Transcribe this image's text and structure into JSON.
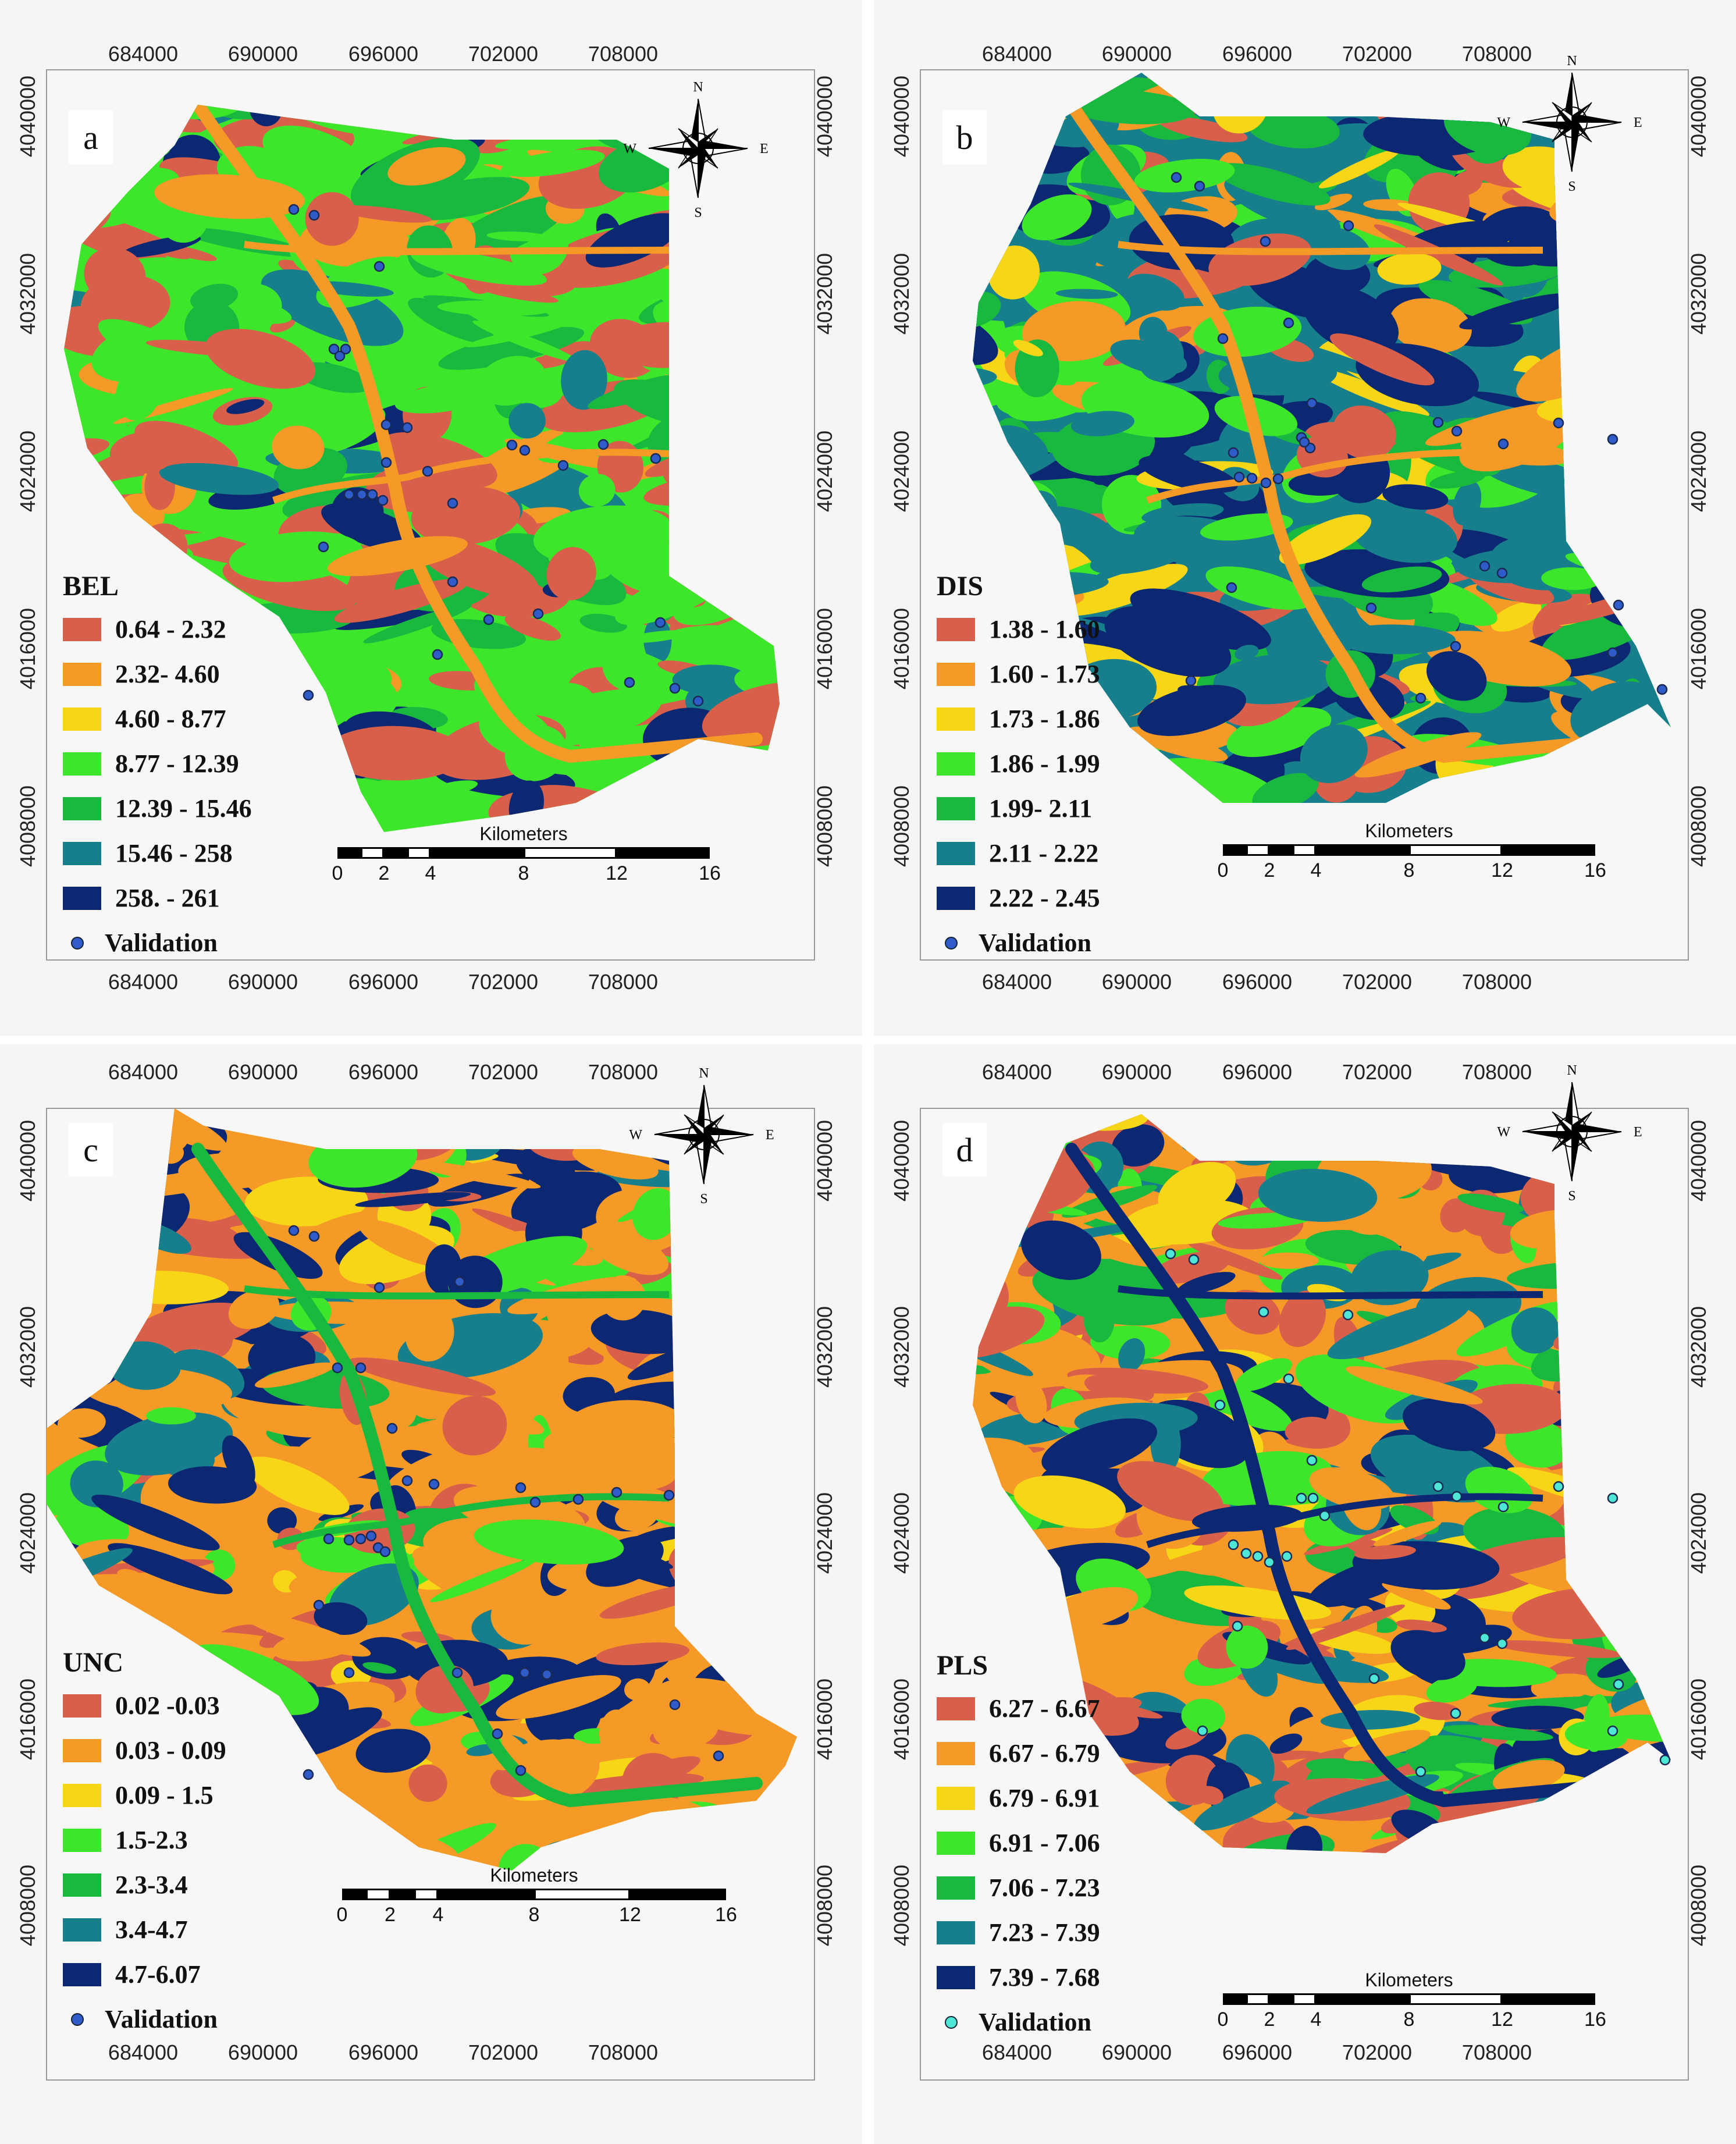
{
  "panels": [
    {
      "id": "a",
      "letter": "a",
      "legend_title": "BEL",
      "classes": [
        {
          "label": "0.64 - 2.32",
          "color": "#d8604a"
        },
        {
          "label": "2.32- 4.60",
          "color": "#f59a26"
        },
        {
          "label": "4.60 - 8.77",
          "color": "#f6d617"
        },
        {
          "label": "8.77 - 12.39",
          "color": "#3ee62b"
        },
        {
          "label": "12.39 - 15.46",
          "color": "#19b83e"
        },
        {
          "label": "15.46 - 258",
          "color": "#177f8c"
        },
        {
          "label": "258. - 261",
          "color": "#0d2873"
        }
      ],
      "validation_label": "Validation",
      "validation_color": "#2f5cc9"
    },
    {
      "id": "b",
      "letter": "b",
      "legend_title": "DIS",
      "classes": [
        {
          "label": "1.38 - 1.60",
          "color": "#d8604a"
        },
        {
          "label": "1.60 - 1.73",
          "color": "#f59a26"
        },
        {
          "label": "1.73 - 1.86",
          "color": "#f6d617"
        },
        {
          "label": "1.86 - 1.99",
          "color": "#3ee62b"
        },
        {
          "label": "1.99- 2.11",
          "color": "#19b83e"
        },
        {
          "label": "2.11 - 2.22",
          "color": "#177f8c"
        },
        {
          "label": "2.22 - 2.45",
          "color": "#0d2873"
        }
      ],
      "validation_label": "Validation",
      "validation_color": "#2f5cc9"
    },
    {
      "id": "c",
      "letter": "c",
      "legend_title": "UNC",
      "classes": [
        {
          "label": "0.02 -0.03",
          "color": "#d8604a"
        },
        {
          "label": "0.03 - 0.09",
          "color": "#f59a26"
        },
        {
          "label": "0.09 - 1.5",
          "color": "#f6d617"
        },
        {
          "label": "1.5-2.3",
          "color": "#3ee62b"
        },
        {
          "label": "2.3-3.4",
          "color": "#19b83e"
        },
        {
          "label": "3.4-4.7",
          "color": "#177f8c"
        },
        {
          "label": "4.7-6.07",
          "color": "#0d2873"
        }
      ],
      "validation_label": "Validation",
      "validation_color": "#2f5cc9"
    },
    {
      "id": "d",
      "letter": "d",
      "legend_title": "PLS",
      "classes": [
        {
          "label": "6.27 - 6.67",
          "color": "#d8604a"
        },
        {
          "label": "6.67 - 6.79",
          "color": "#f59a26"
        },
        {
          "label": "6.79 - 6.91",
          "color": "#f6d617"
        },
        {
          "label": "6.91 - 7.06",
          "color": "#3ee62b"
        },
        {
          "label": "7.06 - 7.23",
          "color": "#19b83e"
        },
        {
          "label": "7.23 - 7.39",
          "color": "#177f8c"
        },
        {
          "label": "7.39 - 7.68",
          "color": "#0d2873"
        }
      ],
      "validation_label": "Validation",
      "validation_color": "#4ee6d4"
    }
  ],
  "axes": {
    "eastings": [
      "684000",
      "690000",
      "696000",
      "702000",
      "708000"
    ],
    "northings": [
      "4040000",
      "4032000",
      "4024000",
      "4016000",
      "4008000"
    ]
  },
  "compass": {
    "n": "N",
    "s": "S",
    "e": "E",
    "w": "W"
  },
  "scale_bar": {
    "title": "Kilometers",
    "ticks": [
      "0",
      "2",
      "4",
      "8",
      "12",
      "16"
    ]
  }
}
